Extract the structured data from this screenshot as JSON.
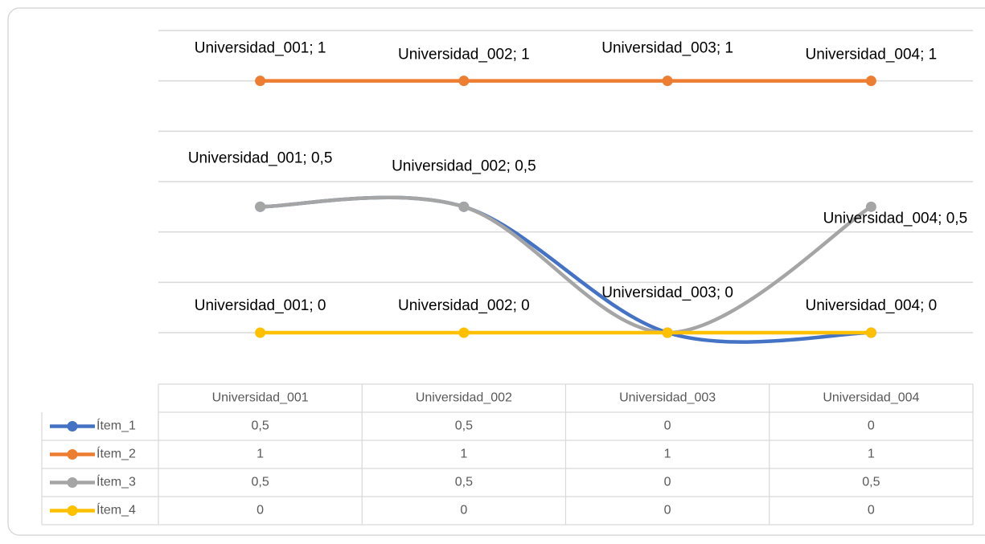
{
  "chart_data": {
    "type": "line",
    "smooth": true,
    "categories": [
      "Universidad_001",
      "Universidad_002",
      "Universidad_003",
      "Universidad_004"
    ],
    "ylim": [
      0,
      1.2
    ],
    "yticks": [
      0,
      0.2,
      0.4,
      0.6,
      0.8,
      1,
      1.2
    ],
    "grid": true,
    "series": [
      {
        "name": "Ítem_1",
        "color": "#4472c4",
        "values": [
          0.5,
          0.5,
          0,
          0
        ],
        "value_labels": [
          null,
          null,
          null,
          null
        ],
        "table_labels": [
          "0,5",
          "0,5",
          "0",
          "0"
        ]
      },
      {
        "name": "Ítem_2",
        "color": "#ed7d31",
        "values": [
          1,
          1,
          1,
          1
        ],
        "value_labels": [
          "Universidad_001; 1",
          "Universidad_002; 1",
          "Universidad_003; 1",
          "Universidad_004; 1"
        ],
        "table_labels": [
          "1",
          "1",
          "1",
          "1"
        ]
      },
      {
        "name": "Ítem_3",
        "color": "#a5a5a5",
        "values": [
          0.5,
          0.5,
          0,
          0.5
        ],
        "value_labels": [
          "Universidad_001; 0,5",
          "Universidad_002; 0,5",
          null,
          "Universidad_004; 0,5"
        ],
        "table_labels": [
          "0,5",
          "0,5",
          "0",
          "0,5"
        ]
      },
      {
        "name": "Ítem_4",
        "color": "#ffc000",
        "values": [
          0,
          0,
          0,
          0
        ],
        "value_labels": [
          "Universidad_001; 0",
          "Universidad_002; 0",
          "Universidad_003; 0",
          "Universidad_004; 0"
        ],
        "table_labels": [
          "0",
          "0",
          "0",
          "0"
        ]
      }
    ]
  }
}
